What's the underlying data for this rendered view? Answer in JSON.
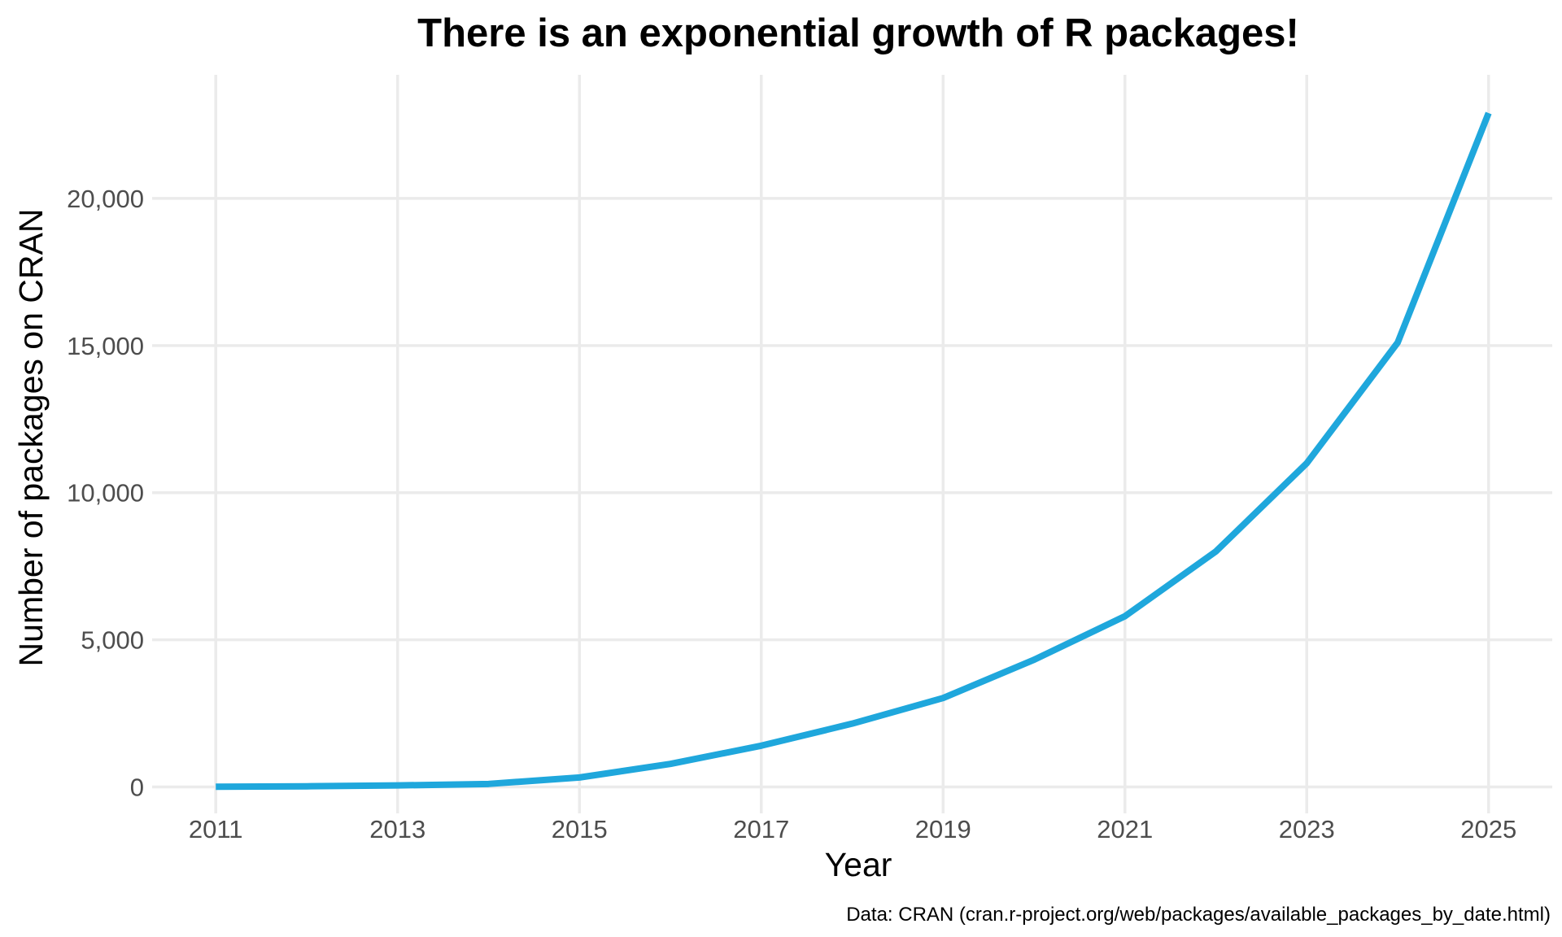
{
  "chart_data": {
    "type": "line",
    "title": "There is an exponential growth of R packages!",
    "xlabel": "Year",
    "ylabel": "Number of packages on CRAN",
    "caption": "Data: CRAN (cran.r-project.org/web/packages/available_packages_by_date.html)",
    "x": [
      2011,
      2012,
      2013,
      2014,
      2015,
      2016,
      2017,
      2018,
      2019,
      2020,
      2021,
      2022,
      2023,
      2024,
      2025
    ],
    "series": [
      {
        "values": [
          5,
          20,
          50,
          100,
          320,
          780,
          1400,
          2150,
          3020,
          4320,
          5800,
          8000,
          11000,
          15100,
          22900
        ]
      }
    ],
    "x_ticks": [
      2011,
      2013,
      2015,
      2017,
      2019,
      2021,
      2023,
      2025
    ],
    "x_tick_labels": [
      "2011",
      "2013",
      "2015",
      "2017",
      "2019",
      "2021",
      "2023",
      "2025"
    ],
    "y_ticks": [
      0,
      5000,
      10000,
      15000,
      20000
    ],
    "y_tick_labels": [
      "0",
      "5,000",
      "10,000",
      "15,000",
      "20,000"
    ],
    "xlim": [
      2010.3,
      2025.7
    ],
    "ylim": [
      -900,
      24200
    ],
    "grid": true,
    "legend": "none",
    "line_color": "#1fa7dc"
  }
}
